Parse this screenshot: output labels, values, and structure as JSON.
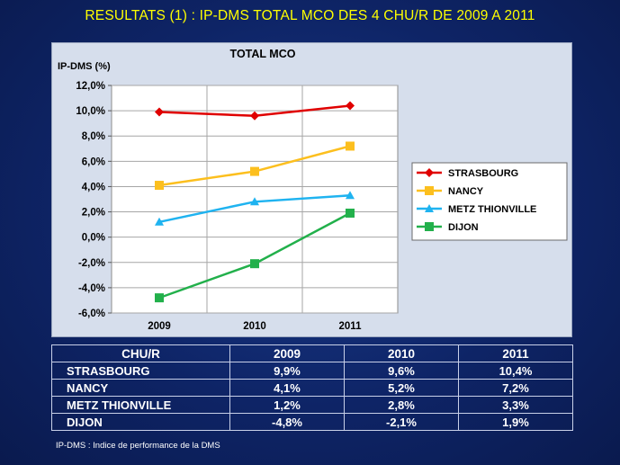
{
  "slide_title": "RESULTATS (1) : IP-DMS TOTAL MCO DES 4 CHU/R DE 2009 A 2011",
  "footnote": "IP-DMS : Indice de performance  de la DMS",
  "colors": {
    "STRASBOURG": "#e00000",
    "NANCY": "#fcbf1e",
    "METZ THIONVILLE": "#1fb3f0",
    "DIJON": "#22b04b"
  },
  "chart_data": {
    "type": "line",
    "title": "TOTAL MCO",
    "ylabel": "IP-DMS (%)",
    "xlabel": "",
    "x": [
      "2009",
      "2010",
      "2011"
    ],
    "ylim": [
      -6,
      12
    ],
    "ytick_step": 2,
    "yticks": [
      "12,0%",
      "10,0%",
      "8,0%",
      "6,0%",
      "4,0%",
      "2,0%",
      "0,0%",
      "-2,0%",
      "-4,0%",
      "-6,0%"
    ],
    "grid": true,
    "legend_position": "right",
    "series": [
      {
        "name": "STRASBOURG",
        "marker": "diamond",
        "values": [
          9.9,
          9.6,
          10.4
        ]
      },
      {
        "name": "NANCY",
        "marker": "square",
        "values": [
          4.1,
          5.2,
          7.2
        ]
      },
      {
        "name": "METZ THIONVILLE",
        "marker": "triangle",
        "values": [
          1.2,
          2.8,
          3.3
        ]
      },
      {
        "name": "DIJON",
        "marker": "square",
        "values": [
          -4.8,
          -2.1,
          1.9
        ]
      }
    ]
  },
  "table": {
    "headers": [
      "CHU/R",
      "2009",
      "2010",
      "2011"
    ],
    "rows": [
      [
        "STRASBOURG",
        "9,9%",
        "9,6%",
        "10,4%"
      ],
      [
        "NANCY",
        "4,1%",
        "5,2%",
        "7,2%"
      ],
      [
        "METZ THIONVILLE",
        "1,2%",
        "2,8%",
        "3,3%"
      ],
      [
        "DIJON",
        "-4,8%",
        "-2,1%",
        "1,9%"
      ]
    ]
  }
}
